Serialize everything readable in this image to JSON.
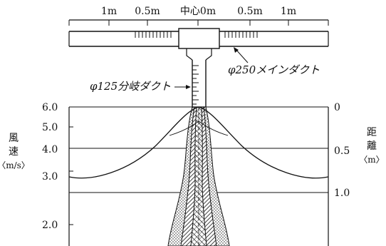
{
  "top_scale": {
    "labels": [
      "1m",
      "0.5m",
      "中心0m",
      "0.5m",
      "1m"
    ]
  },
  "annotations": {
    "branch_duct": "φ125分岐ダクト",
    "main_duct": "φ250メインダクト"
  },
  "left_axis": {
    "title_lines": [
      "風",
      "速",
      "〈m/s〉"
    ],
    "ticks": [
      "6.0",
      "5.0",
      "4.0",
      "3.0",
      "2.0"
    ]
  },
  "right_axis": {
    "title_lines": [
      "距",
      "離",
      "〈m〉"
    ],
    "ticks": [
      "0",
      "0.5",
      "1.0"
    ]
  }
}
